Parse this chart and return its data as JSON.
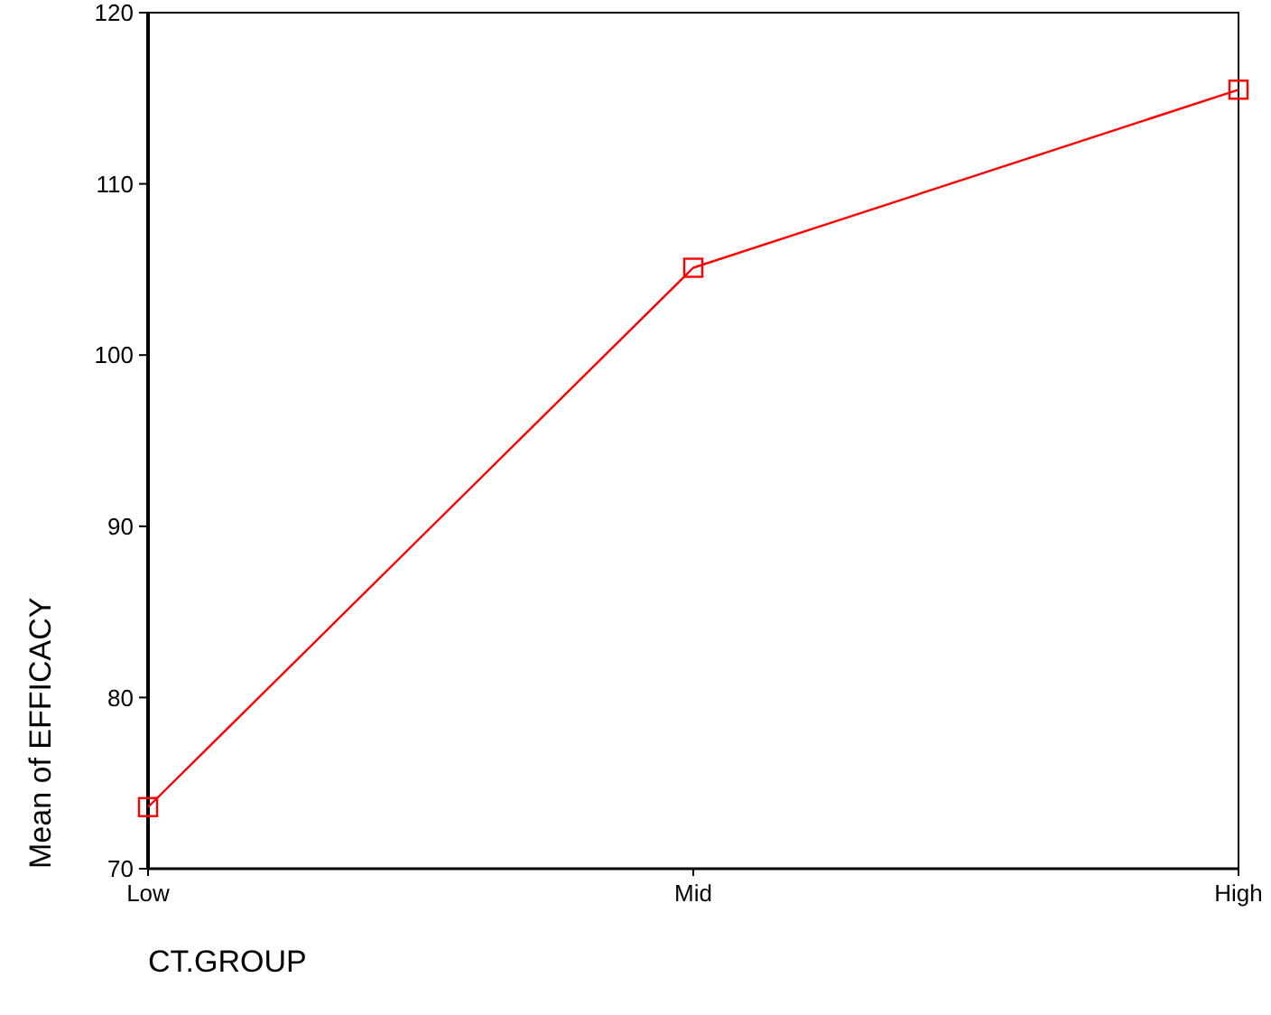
{
  "chart_data": {
    "type": "line",
    "xlabel": "CT.GROUP",
    "ylabel": "Mean of EFFICACY",
    "categories": [
      "Low",
      "Mid",
      "High"
    ],
    "series": [
      {
        "color": "#ff0000",
        "values": [
          73.6,
          105.1,
          115.5
        ]
      }
    ],
    "ylim": [
      70,
      120
    ],
    "yticks": [
      70,
      80,
      90,
      100,
      110,
      120
    ],
    "marker": "square",
    "line_style": "solid"
  }
}
